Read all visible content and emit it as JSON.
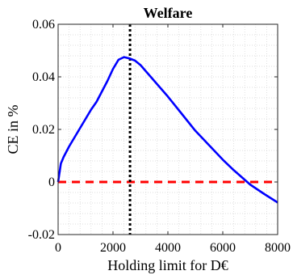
{
  "chart_data": {
    "type": "line",
    "title": "Welfare",
    "xlabel": "Holding limit for D€",
    "ylabel": "CE in %",
    "xlim": [
      0,
      8000
    ],
    "ylim": [
      -0.02,
      0.06
    ],
    "xticks": [
      0,
      2000,
      4000,
      6000,
      8000
    ],
    "xtick_labels": [
      "0",
      "2000",
      "4000",
      "6000",
      "8000"
    ],
    "yticks": [
      -0.02,
      0,
      0.02,
      0.04,
      0.06
    ],
    "ytick_labels": [
      "-0.02",
      "0",
      "0.02",
      "0.04",
      "0.06"
    ],
    "grid": "minor dotted",
    "colors": {
      "curve": "#0000ff",
      "zero_line": "#ff0000",
      "marker_line": "#000000"
    },
    "series": [
      {
        "x": [
          0,
          100,
          200,
          400,
          600,
          800,
          1000,
          1200,
          1400,
          1600,
          1800,
          2000,
          2200,
          2400,
          2600,
          2800,
          3000,
          3500,
          4000,
          4500,
          5000,
          5500,
          6000,
          6400,
          7000,
          7500,
          8000
        ],
        "values": [
          0.0,
          0.007,
          0.0095,
          0.0135,
          0.017,
          0.0205,
          0.024,
          0.0275,
          0.0305,
          0.0345,
          0.0385,
          0.043,
          0.0465,
          0.0475,
          0.047,
          0.0462,
          0.0445,
          0.0385,
          0.0325,
          0.026,
          0.0195,
          0.014,
          0.0085,
          0.0045,
          -0.001,
          -0.0045,
          -0.0078
        ]
      }
    ],
    "reference_lines": {
      "horizontal_y": 0,
      "vertical_x": 2620
    }
  }
}
